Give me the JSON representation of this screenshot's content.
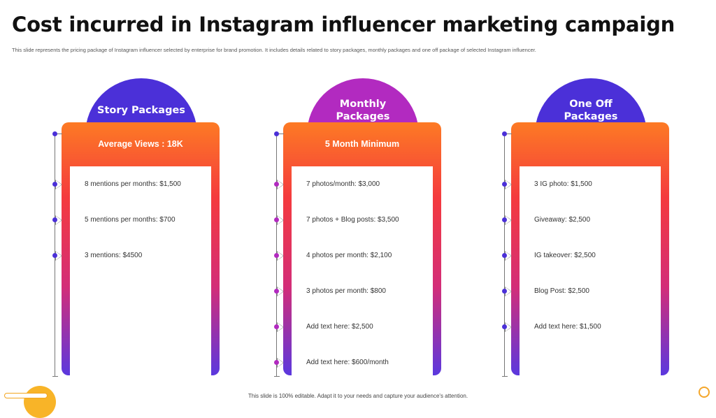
{
  "slide": {
    "title": "Cost incurred in Instagram influencer marketing campaign",
    "subtitle": "This slide represents the pricing package of Instagram influencer selected by enterprise for brand promotion. It includes details related to story packages, monthly packages and one off package of selected Instagram influencer.",
    "footer": "This slide is 100% editable. Adapt it to your needs and capture your audience's attention."
  },
  "packages": [
    {
      "name": "Story Packages",
      "highlight": "Average Views : 18K",
      "items": [
        "8 mentions per months: $1,500",
        "5 mentions per months: $700",
        "3 mentions: $4500"
      ]
    },
    {
      "name": "Monthly Packages",
      "highlight": "5 Month Minimum",
      "items": [
        "7 photos/month: $3,000",
        "7 photos + Blog posts: $3,500",
        "4 photos per month: $2,100",
        "3 photos per month: $800",
        "Add text here: $2,500",
        "Add text here: $600/month"
      ]
    },
    {
      "name": "One Off Packages",
      "highlight": "",
      "items": [
        "3 IG photo: $1,500",
        "Giveaway: $2,500",
        "IG takeover: $2,500",
        "Blog Post: $2,500",
        "Add text here: $1,500"
      ]
    }
  ],
  "colors": {
    "story_dome": "#4b30d8",
    "monthly_dome": "#b22ac0",
    "oneoff_dome": "#4b30d8",
    "gradient_top": "#fd7a24",
    "gradient_bottom": "#5b38de"
  }
}
